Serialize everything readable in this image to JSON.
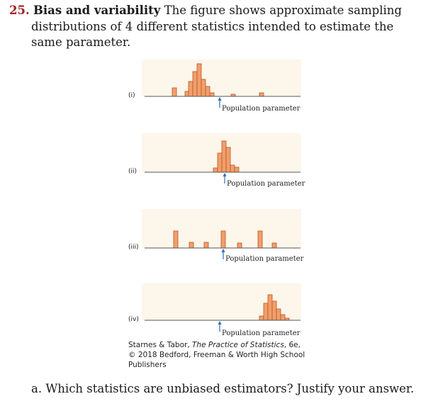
{
  "problem": {
    "number": "25.",
    "title": "Bias and variability",
    "line1": " The figure shows approximate sampling",
    "line2": "distributions of 4 different statistics intended to estimate the",
    "line3": "same parameter."
  },
  "figure": {
    "arrow_label": "Population parameter",
    "panels": [
      {
        "label": "(i)",
        "bars": [
          [
            243,
            12
          ],
          [
            261,
            7
          ],
          [
            266,
            21
          ],
          [
            272,
            35
          ],
          [
            278,
            46
          ],
          [
            284,
            24
          ],
          [
            290,
            14
          ],
          [
            296,
            5
          ],
          [
            326,
            3
          ],
          [
            366,
            5
          ]
        ]
      },
      {
        "label": "(ii)",
        "bars": [
          [
            301,
            6
          ],
          [
            307,
            27
          ],
          [
            313,
            44
          ],
          [
            319,
            35
          ],
          [
            325,
            10
          ],
          [
            331,
            7
          ]
        ]
      },
      {
        "label": "(iii)",
        "bars": [
          [
            245,
            24
          ],
          [
            267,
            8
          ],
          [
            288,
            8
          ],
          [
            312,
            24
          ],
          [
            335,
            7
          ],
          [
            364,
            24
          ],
          [
            384,
            7
          ]
        ]
      },
      {
        "label": "(iv)",
        "bars": [
          [
            366,
            6
          ],
          [
            372,
            24
          ],
          [
            378,
            36
          ],
          [
            384,
            27
          ],
          [
            390,
            16
          ],
          [
            396,
            8
          ],
          [
            402,
            3
          ]
        ]
      }
    ]
  },
  "credit": {
    "line1": "Starnes & Tabor, ",
    "book": "The Practice of Statistics",
    "line1_end": ", 6e,",
    "line2": "© 2018 Bedford, Freeman & Worth High School",
    "line3": "Publishers"
  },
  "question": "a. Which statistics are unbiased estimators? Justify your answer.",
  "colors": {
    "bar_fill": "#f0a06a",
    "bar_stroke": "#c0502a",
    "panel_bg": "#fdf6ea",
    "arrow": "#2f6db3",
    "number": "#a01d21"
  }
}
